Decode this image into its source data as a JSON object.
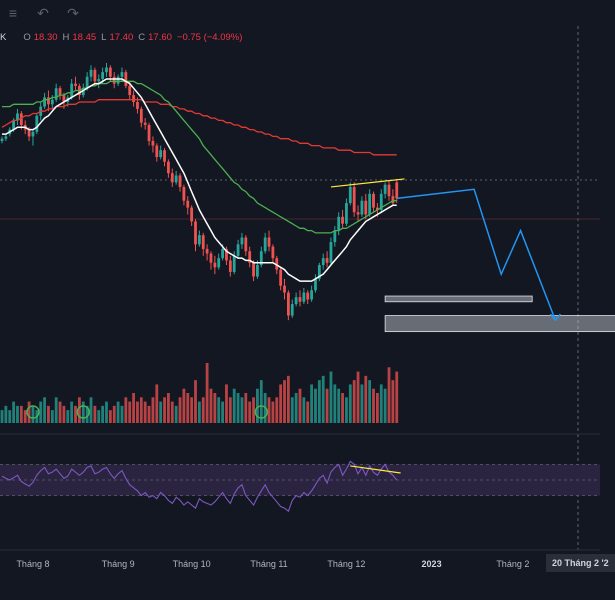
{
  "toolbar": {
    "items": [
      {
        "icon": "menu-icon",
        "glyph": "≡"
      },
      {
        "icon": "undo-icon",
        "glyph": "↶"
      },
      {
        "icon": "redo-icon",
        "glyph": "↷"
      }
    ]
  },
  "legend": {
    "symbol": "K",
    "open_label": "O",
    "open": "18.30",
    "high_label": "H",
    "high": "18.45",
    "low_label": "L",
    "low": "17.40",
    "close_label": "C",
    "close": "17.60",
    "change": "−0.75 (−4.09%)"
  },
  "colors": {
    "background": "#131722",
    "up": "#26a69a",
    "down": "#ef5350",
    "ma_fast": "#ffffff",
    "ma_mid": "#4caf50",
    "ma_slow": "#e53935",
    "trendline": "#ffeb3b",
    "projection": "#2196f3",
    "zone_fill": "#d1d4dc",
    "rsi_line": "#7e57c2",
    "rsi_band": "#2a2440"
  },
  "x_axis": {
    "labels": [
      "Tháng 8",
      "Tháng 9",
      "Tháng 10",
      "Tháng 11",
      "Tháng 12",
      "2023",
      "Tháng 2"
    ],
    "bold_labels": [
      "2023"
    ],
    "crosshair_date": "20 Tháng 2 '2"
  },
  "chart_data": {
    "type": "candlestick",
    "candles": [
      [
        20.1,
        20.3,
        20,
        20.2
      ],
      [
        20.2,
        20.4,
        20.1,
        20.3
      ],
      [
        20.4,
        20.7,
        20.3,
        20.6
      ],
      [
        20.6,
        21.1,
        20.5,
        21
      ],
      [
        21,
        21.5,
        20.8,
        21.3
      ],
      [
        21.3,
        21.4,
        20.6,
        20.8
      ],
      [
        20.8,
        21,
        20.4,
        20.6
      ],
      [
        20.6,
        20.7,
        20.1,
        20.3
      ],
      [
        20.3,
        20.6,
        19.9,
        20.5
      ],
      [
        20.5,
        21.3,
        20.4,
        21.2
      ],
      [
        21.2,
        21.8,
        21,
        21.6
      ],
      [
        21.6,
        22.2,
        21.5,
        22
      ],
      [
        22,
        22.3,
        21.4,
        21.7
      ],
      [
        21.7,
        22.1,
        21.5,
        21.9
      ],
      [
        21.9,
        22.6,
        21.8,
        22.4
      ],
      [
        22.4,
        22.5,
        21.9,
        22.1
      ],
      [
        22.1,
        22.2,
        21.5,
        21.8
      ],
      [
        21.8,
        22.1,
        21.6,
        22
      ],
      [
        22,
        22.8,
        21.9,
        22.6
      ],
      [
        22.6,
        22.9,
        22.3,
        22.5
      ],
      [
        22.5,
        22.6,
        21.9,
        22.1
      ],
      [
        22.1,
        22.6,
        22,
        22.4
      ],
      [
        22.4,
        23.1,
        22.3,
        22.9
      ],
      [
        22.9,
        23.4,
        22.7,
        23.2
      ],
      [
        23.2,
        23.3,
        22.5,
        22.7
      ],
      [
        22.7,
        23,
        22.4,
        22.8
      ],
      [
        22.8,
        23.3,
        22.6,
        23.1
      ],
      [
        23.1,
        23.5,
        22.9,
        23.3
      ],
      [
        23.3,
        23.4,
        22.7,
        22.9
      ],
      [
        22.9,
        23.1,
        22.4,
        22.6
      ],
      [
        22.6,
        23,
        22.5,
        22.9
      ],
      [
        22.9,
        23.3,
        22.7,
        23.1
      ],
      [
        23.1,
        23.2,
        22.4,
        22.5
      ],
      [
        22.5,
        22.7,
        21.9,
        22.1
      ],
      [
        22.1,
        22.3,
        21.6,
        21.8
      ],
      [
        21.8,
        22,
        21.3,
        21.5
      ],
      [
        21.5,
        21.6,
        20.7,
        20.9
      ],
      [
        20.9,
        21.1,
        20.6,
        20.8
      ],
      [
        20.8,
        20.9,
        19.9,
        20.1
      ],
      [
        20.1,
        20.3,
        19.6,
        19.9
      ],
      [
        19.9,
        20,
        19.2,
        19.4
      ],
      [
        19.4,
        19.9,
        19.3,
        19.7
      ],
      [
        19.7,
        19.8,
        19,
        19.2
      ],
      [
        19.2,
        19.3,
        18.5,
        18.7
      ],
      [
        18.7,
        18.9,
        18.1,
        18.3
      ],
      [
        18.3,
        18.8,
        18.2,
        18.6
      ],
      [
        18.6,
        18.7,
        17.9,
        18.1
      ],
      [
        18.1,
        18.2,
        17.3,
        17.5
      ],
      [
        17.5,
        17.7,
        16.9,
        17.2
      ],
      [
        17.2,
        17.3,
        16.4,
        16.6
      ],
      [
        16.6,
        16.7,
        15.3,
        15.6
      ],
      [
        15.6,
        16.2,
        15.5,
        16
      ],
      [
        16,
        16.1,
        15.1,
        15.4
      ],
      [
        15.4,
        15.6,
        14.9,
        15.2
      ],
      [
        15.2,
        15.3,
        14.5,
        14.8
      ],
      [
        14.8,
        15.1,
        14.3,
        14.6
      ],
      [
        14.6,
        15.2,
        14.5,
        15
      ],
      [
        15,
        15.6,
        14.9,
        15.4
      ],
      [
        15.4,
        15.5,
        14.7,
        14.9
      ],
      [
        14.9,
        15.1,
        14.2,
        14.4
      ],
      [
        14.4,
        15.3,
        14.3,
        15.1
      ],
      [
        15.1,
        15.8,
        15,
        15.6
      ],
      [
        15.6,
        16.1,
        15.4,
        15.9
      ],
      [
        15.9,
        16,
        15.1,
        15.3
      ],
      [
        15.3,
        15.5,
        14.6,
        14.8
      ],
      [
        14.8,
        14.9,
        14,
        14.2
      ],
      [
        14.2,
        14.9,
        14.1,
        14.7
      ],
      [
        14.7,
        15.5,
        14.6,
        15.3
      ],
      [
        15.3,
        16.1,
        15.2,
        15.9
      ],
      [
        15.9,
        16.2,
        15.3,
        15.5
      ],
      [
        15.5,
        15.6,
        14.8,
        15
      ],
      [
        15,
        15.1,
        14.3,
        14.5
      ],
      [
        14.5,
        14.6,
        13.6,
        13.8
      ],
      [
        13.8,
        14.1,
        13.2,
        13.5
      ],
      [
        13.5,
        13.6,
        12.3,
        12.5
      ],
      [
        12.5,
        13.2,
        12.4,
        13
      ],
      [
        13,
        13.5,
        12.9,
        13.3
      ],
      [
        13.3,
        13.6,
        12.9,
        13.1
      ],
      [
        13.1,
        13.7,
        13,
        13.5
      ],
      [
        13.5,
        13.6,
        13,
        13.2
      ],
      [
        13.2,
        13.8,
        13.1,
        13.6
      ],
      [
        13.6,
        14.3,
        13.5,
        14.1
      ],
      [
        14.1,
        14.8,
        14,
        14.7
      ],
      [
        14.7,
        15.2,
        14.5,
        15
      ],
      [
        15,
        15.3,
        14.6,
        14.8
      ],
      [
        14.8,
        15.9,
        14.7,
        15.7
      ],
      [
        15.7,
        16.4,
        15.5,
        16.2
      ],
      [
        16.2,
        17,
        16,
        16.8
      ],
      [
        16.8,
        17.1,
        16.3,
        16.5
      ],
      [
        16.5,
        17.6,
        16.4,
        17.4
      ],
      [
        17.4,
        18.3,
        17.3,
        18.1
      ],
      [
        18.1,
        18.3,
        16.8,
        17
      ],
      [
        17,
        17.3,
        16.6,
        16.9
      ],
      [
        16.9,
        17.7,
        16.8,
        17.5
      ],
      [
        17.5,
        17.8,
        16.7,
        16.9
      ],
      [
        16.9,
        18,
        16.8,
        17.8
      ],
      [
        17.8,
        17.9,
        17,
        17.2
      ],
      [
        17.2,
        17.4,
        16.8,
        17.1
      ],
      [
        17.1,
        18,
        17,
        17.8
      ],
      [
        17.8,
        18.3,
        17.6,
        18.2
      ],
      [
        18.2,
        18.4,
        17.5,
        17.7
      ],
      [
        17.7,
        18,
        17.3,
        17.4
      ],
      [
        18.3,
        18.45,
        17.4,
        17.6
      ]
    ],
    "ma_fast": [
      20.4,
      20.4,
      20.5,
      20.6,
      20.7,
      20.7,
      20.7,
      20.6,
      20.6,
      20.7,
      20.9,
      21.1,
      21.2,
      21.4,
      21.6,
      21.7,
      21.8,
      21.9,
      22,
      22.1,
      22.2,
      22.3,
      22.4,
      22.5,
      22.6,
      22.6,
      22.7,
      22.8,
      22.8,
      22.8,
      22.8,
      22.8,
      22.7,
      22.6,
      22.4,
      22.2,
      22,
      21.7,
      21.4,
      21.1,
      20.8,
      20.5,
      20.2,
      19.9,
      19.6,
      19.3,
      19,
      18.7,
      18.3,
      17.9,
      17.5,
      17.1,
      16.8,
      16.5,
      16.2,
      15.9,
      15.7,
      15.5,
      15.3,
      15.2,
      15.1,
      15,
      15,
      14.9,
      14.9,
      14.8,
      14.8,
      14.8,
      14.8,
      14.8,
      14.8,
      14.7,
      14.6,
      14.5,
      14.3,
      14.2,
      14.1,
      14,
      14,
      14,
      14,
      14.1,
      14.2,
      14.3,
      14.5,
      14.7,
      14.9,
      15.1,
      15.3,
      15.5,
      15.8,
      16,
      16.2,
      16.4,
      16.6,
      16.7,
      16.8,
      16.9,
      17,
      17.1,
      17.2,
      17.3,
      17.3
    ],
    "ma_mid": [
      21.6,
      21.6,
      21.6,
      21.7,
      21.7,
      21.7,
      21.7,
      21.7,
      21.7,
      21.8,
      21.8,
      21.9,
      21.9,
      22,
      22,
      22.1,
      22.1,
      22.2,
      22.2,
      22.3,
      22.3,
      22.4,
      22.4,
      22.5,
      22.5,
      22.6,
      22.6,
      22.6,
      22.7,
      22.7,
      22.7,
      22.7,
      22.7,
      22.7,
      22.7,
      22.6,
      22.6,
      22.5,
      22.4,
      22.3,
      22.2,
      22.1,
      21.9,
      21.8,
      21.6,
      21.4,
      21.2,
      21,
      20.8,
      20.6,
      20.4,
      20.2,
      19.9,
      19.7,
      19.5,
      19.3,
      19.1,
      18.9,
      18.7,
      18.5,
      18.3,
      18.2,
      18,
      17.9,
      17.7,
      17.6,
      17.4,
      17.3,
      17.2,
      17.1,
      17,
      16.9,
      16.8,
      16.7,
      16.6,
      16.5,
      16.4,
      16.3,
      16.3,
      16.2,
      16.2,
      16.1,
      16.1,
      16.1,
      16.1,
      16.1,
      16.2,
      16.2,
      16.3,
      16.3,
      16.4,
      16.5,
      16.6,
      16.7,
      16.8,
      16.9,
      17,
      17.1,
      17.2,
      17.3,
      17.4,
      17.5,
      17.5
    ],
    "ma_slow": [
      20.7,
      20.8,
      20.9,
      21,
      21,
      21.1,
      21.2,
      21.2,
      21.3,
      21.3,
      21.4,
      21.4,
      21.5,
      21.5,
      21.6,
      21.6,
      21.6,
      21.7,
      21.7,
      21.7,
      21.8,
      21.8,
      21.8,
      21.8,
      21.8,
      21.9,
      21.9,
      21.9,
      21.9,
      21.9,
      21.9,
      21.9,
      21.9,
      21.9,
      21.9,
      21.9,
      21.9,
      21.8,
      21.8,
      21.8,
      21.8,
      21.7,
      21.7,
      21.7,
      21.6,
      21.6,
      21.5,
      21.5,
      21.4,
      21.4,
      21.3,
      21.3,
      21.2,
      21.2,
      21.1,
      21.1,
      21,
      21,
      20.9,
      20.9,
      20.8,
      20.8,
      20.7,
      20.7,
      20.6,
      20.6,
      20.5,
      20.5,
      20.4,
      20.4,
      20.3,
      20.3,
      20.2,
      20.2,
      20.2,
      20.1,
      20.1,
      20,
      20,
      20,
      19.9,
      19.9,
      19.9,
      19.8,
      19.8,
      19.8,
      19.8,
      19.7,
      19.7,
      19.7,
      19.7,
      19.6,
      19.6,
      19.6,
      19.6,
      19.6,
      19.5,
      19.5,
      19.5,
      19.5,
      19.5,
      19.5,
      19.5
    ],
    "volume": [
      3,
      4,
      3,
      5,
      4,
      4,
      3,
      5,
      4,
      3,
      5,
      6,
      4,
      3,
      6,
      5,
      4,
      3,
      5,
      4,
      6,
      5,
      4,
      6,
      4,
      3,
      4,
      5,
      3,
      4,
      5,
      4,
      6,
      5,
      7,
      5,
      6,
      5,
      4,
      6,
      9,
      5,
      6,
      7,
      5,
      4,
      6,
      8,
      7,
      6,
      10,
      5,
      6,
      14,
      8,
      7,
      6,
      5,
      9,
      6,
      8,
      7,
      6,
      7,
      5,
      6,
      8,
      10,
      7,
      6,
      5,
      6,
      9,
      10,
      11,
      6,
      7,
      8,
      6,
      5,
      9,
      8,
      10,
      11,
      8,
      12,
      9,
      8,
      7,
      6,
      9,
      10,
      12,
      9,
      11,
      10,
      8,
      7,
      9,
      8,
      13,
      10,
      12
    ],
    "rsi": [
      55,
      52,
      50,
      53,
      56,
      48,
      45,
      42,
      47,
      56,
      62,
      66,
      58,
      60,
      64,
      58,
      52,
      55,
      64,
      60,
      56,
      60,
      66,
      68,
      58,
      60,
      64,
      66,
      58,
      52,
      58,
      62,
      52,
      44,
      40,
      36,
      30,
      34,
      28,
      30,
      26,
      34,
      30,
      24,
      20,
      28,
      24,
      18,
      22,
      18,
      14,
      26,
      22,
      20,
      18,
      22,
      28,
      34,
      26,
      20,
      32,
      40,
      44,
      30,
      24,
      18,
      28,
      36,
      44,
      34,
      28,
      22,
      16,
      14,
      10,
      24,
      30,
      28,
      34,
      30,
      36,
      44,
      52,
      56,
      46,
      60,
      66,
      70,
      56,
      64,
      74,
      70,
      58,
      66,
      56,
      68,
      60,
      56,
      64,
      70,
      60,
      56,
      50
    ],
    "price_range": [
      11,
      24.5
    ],
    "rsi_range": [
      0,
      100
    ],
    "projection": [
      [
        18,
        20
      ],
      [
        14.3,
        27
      ],
      [
        16.2,
        32
      ],
      [
        12.3,
        41
      ]
    ],
    "zones": [
      {
        "from_bar": 99,
        "to_bar": 137,
        "low": 13.1,
        "high": 13.35
      },
      {
        "from_bar": 99,
        "to_bar": 170,
        "low": 11.8,
        "high": 12.5
      }
    ],
    "trendlines": [
      {
        "from_bar": 85,
        "from": 18.1,
        "to_bar": 104,
        "to": 18.45
      },
      {
        "from_bar": 90,
        "from": 68,
        "to_bar": 103,
        "to": 59
      }
    ],
    "markers": [
      {
        "bar": 8
      },
      {
        "bar": 21
      },
      {
        "bar": 67
      }
    ],
    "x_label_bars": [
      8,
      30,
      49,
      69,
      89,
      111,
      132
    ]
  }
}
